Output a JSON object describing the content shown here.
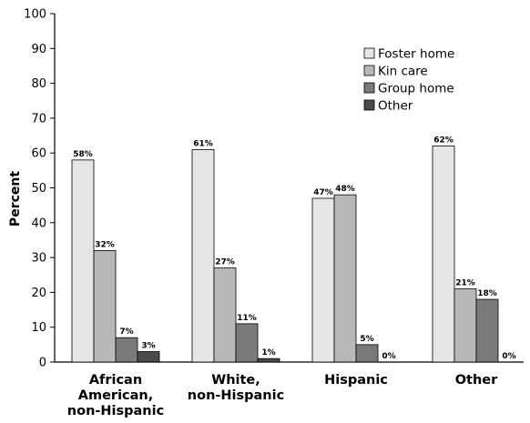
{
  "chart_data": {
    "type": "bar",
    "title": "",
    "xlabel": "",
    "ylabel": "Percent",
    "ylim": [
      0,
      100
    ],
    "yticks": [
      0,
      10,
      20,
      30,
      40,
      50,
      60,
      70,
      80,
      90,
      100
    ],
    "grid": false,
    "legend_position": "top-right",
    "categories": [
      [
        "African",
        "American,",
        "non-Hispanic"
      ],
      [
        "White,",
        "non-Hispanic"
      ],
      [
        "Hispanic"
      ],
      [
        "Other"
      ]
    ],
    "series": [
      {
        "name": "Foster home",
        "color": "#e6e6e6",
        "values": [
          58,
          61,
          47,
          62
        ],
        "labels": [
          "58%",
          "61%",
          "47%",
          "62%"
        ]
      },
      {
        "name": "Kin care",
        "color": "#b8b8b8",
        "values": [
          32,
          27,
          48,
          21
        ],
        "labels": [
          "32%",
          "27%",
          "48%",
          "21%"
        ]
      },
      {
        "name": "Group home",
        "color": "#7a7a7a",
        "values": [
          7,
          11,
          5,
          18
        ],
        "labels": [
          "7%",
          "11%",
          "5%",
          "18%"
        ]
      },
      {
        "name": "Other",
        "color": "#4a4a4a",
        "values": [
          3,
          1,
          0,
          0
        ],
        "labels": [
          "3%",
          "1%",
          "0%",
          "0%"
        ]
      }
    ]
  }
}
